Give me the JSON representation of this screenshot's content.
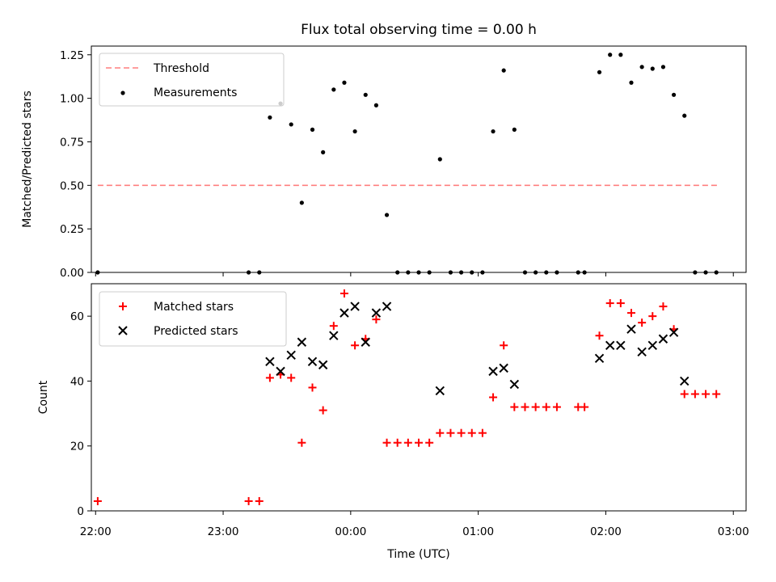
{
  "chart_data": [
    {
      "type": "scatter",
      "title": "Flux total observing time = 0.00 h",
      "xlabel": "",
      "ylabel": "Matched/Predicted stars",
      "xlim": [
        "21:58",
        "03:06"
      ],
      "ylim": [
        0,
        1.3
      ],
      "yticks": [
        "0.00",
        "0.25",
        "0.50",
        "0.75",
        "1.00",
        "1.25"
      ],
      "legend_position": "top-left",
      "legend": [
        "Threshold",
        "Measurements"
      ],
      "threshold": {
        "name": "Threshold",
        "y": 0.5,
        "x_start": "22:01",
        "x_end": "02:53",
        "color": "#ff7f7f",
        "style": "dashed"
      },
      "series": [
        {
          "name": "Measurements",
          "color": "#000000",
          "points": [
            [
              "22:01",
              0.0
            ],
            [
              "23:12",
              0.0
            ],
            [
              "23:17",
              0.0
            ],
            [
              "23:22",
              0.89
            ],
            [
              "23:27",
              0.97
            ],
            [
              "23:32",
              0.85
            ],
            [
              "23:37",
              0.4
            ],
            [
              "23:42",
              0.82
            ],
            [
              "23:47",
              0.69
            ],
            [
              "23:52",
              1.05
            ],
            [
              "23:57",
              1.09
            ],
            [
              "00:02",
              0.81
            ],
            [
              "00:07",
              1.02
            ],
            [
              "00:12",
              0.96
            ],
            [
              "00:17",
              0.33
            ],
            [
              "00:22",
              0.0
            ],
            [
              "00:27",
              0.0
            ],
            [
              "00:32",
              0.0
            ],
            [
              "00:37",
              0.0
            ],
            [
              "00:42",
              0.65
            ],
            [
              "00:47",
              0.0
            ],
            [
              "00:52",
              0.0
            ],
            [
              "00:57",
              0.0
            ],
            [
              "01:02",
              0.0
            ],
            [
              "01:07",
              0.81
            ],
            [
              "01:12",
              1.16
            ],
            [
              "01:17",
              0.82
            ],
            [
              "01:22",
              0.0
            ],
            [
              "01:27",
              0.0
            ],
            [
              "01:32",
              0.0
            ],
            [
              "01:37",
              0.0
            ],
            [
              "01:47",
              0.0
            ],
            [
              "01:50",
              0.0
            ],
            [
              "01:57",
              1.15
            ],
            [
              "02:02",
              1.25
            ],
            [
              "02:07",
              1.25
            ],
            [
              "02:12",
              1.09
            ],
            [
              "02:17",
              1.18
            ],
            [
              "02:22",
              1.17
            ],
            [
              "02:27",
              1.18
            ],
            [
              "02:32",
              1.02
            ],
            [
              "02:37",
              0.9
            ],
            [
              "02:42",
              0.0
            ],
            [
              "02:47",
              0.0
            ],
            [
              "02:52",
              0.0
            ]
          ]
        }
      ]
    },
    {
      "type": "scatter",
      "title": "",
      "xlabel": "Time (UTC)",
      "ylabel": "Count",
      "xlim": [
        "21:58",
        "03:06"
      ],
      "ylim": [
        0,
        70
      ],
      "yticks": [
        "0",
        "20",
        "40",
        "60"
      ],
      "xticks": [
        "22:00",
        "23:00",
        "00:00",
        "01:00",
        "02:00",
        "03:00"
      ],
      "legend_position": "top-left",
      "legend": [
        "Matched stars",
        "Predicted stars"
      ],
      "series": [
        {
          "name": "Matched stars",
          "marker": "plus",
          "color": "#ff0000",
          "points": [
            [
              "22:01",
              3
            ],
            [
              "23:12",
              3
            ],
            [
              "23:17",
              3
            ],
            [
              "23:22",
              41
            ],
            [
              "23:27",
              42
            ],
            [
              "23:32",
              41
            ],
            [
              "23:37",
              21
            ],
            [
              "23:42",
              38
            ],
            [
              "23:47",
              31
            ],
            [
              "23:52",
              57
            ],
            [
              "23:57",
              67
            ],
            [
              "00:02",
              51
            ],
            [
              "00:07",
              53
            ],
            [
              "00:12",
              59
            ],
            [
              "00:17",
              21
            ],
            [
              "00:22",
              21
            ],
            [
              "00:27",
              21
            ],
            [
              "00:32",
              21
            ],
            [
              "00:37",
              21
            ],
            [
              "00:42",
              24
            ],
            [
              "00:47",
              24
            ],
            [
              "00:52",
              24
            ],
            [
              "00:57",
              24
            ],
            [
              "01:02",
              24
            ],
            [
              "01:07",
              35
            ],
            [
              "01:12",
              51
            ],
            [
              "01:17",
              32
            ],
            [
              "01:22",
              32
            ],
            [
              "01:27",
              32
            ],
            [
              "01:32",
              32
            ],
            [
              "01:37",
              32
            ],
            [
              "01:47",
              32
            ],
            [
              "01:50",
              32
            ],
            [
              "01:57",
              54
            ],
            [
              "02:02",
              64
            ],
            [
              "02:07",
              64
            ],
            [
              "02:12",
              61
            ],
            [
              "02:17",
              58
            ],
            [
              "02:22",
              60
            ],
            [
              "02:27",
              63
            ],
            [
              "02:32",
              56
            ],
            [
              "02:37",
              36
            ],
            [
              "02:42",
              36
            ],
            [
              "02:47",
              36
            ],
            [
              "02:52",
              36
            ]
          ]
        },
        {
          "name": "Predicted stars",
          "marker": "x",
          "color": "#000000",
          "points": [
            [
              "23:22",
              46
            ],
            [
              "23:27",
              43
            ],
            [
              "23:32",
              48
            ],
            [
              "23:37",
              52
            ],
            [
              "23:42",
              46
            ],
            [
              "23:47",
              45
            ],
            [
              "23:52",
              54
            ],
            [
              "23:57",
              61
            ],
            [
              "00:02",
              63
            ],
            [
              "00:07",
              52
            ],
            [
              "00:12",
              61
            ],
            [
              "00:17",
              63
            ],
            [
              "00:42",
              37
            ],
            [
              "01:07",
              43
            ],
            [
              "01:12",
              44
            ],
            [
              "01:17",
              39
            ],
            [
              "01:57",
              47
            ],
            [
              "02:02",
              51
            ],
            [
              "02:07",
              51
            ],
            [
              "02:12",
              56
            ],
            [
              "02:17",
              49
            ],
            [
              "02:22",
              51
            ],
            [
              "02:27",
              53
            ],
            [
              "02:32",
              55
            ],
            [
              "02:37",
              40
            ]
          ]
        }
      ]
    }
  ]
}
